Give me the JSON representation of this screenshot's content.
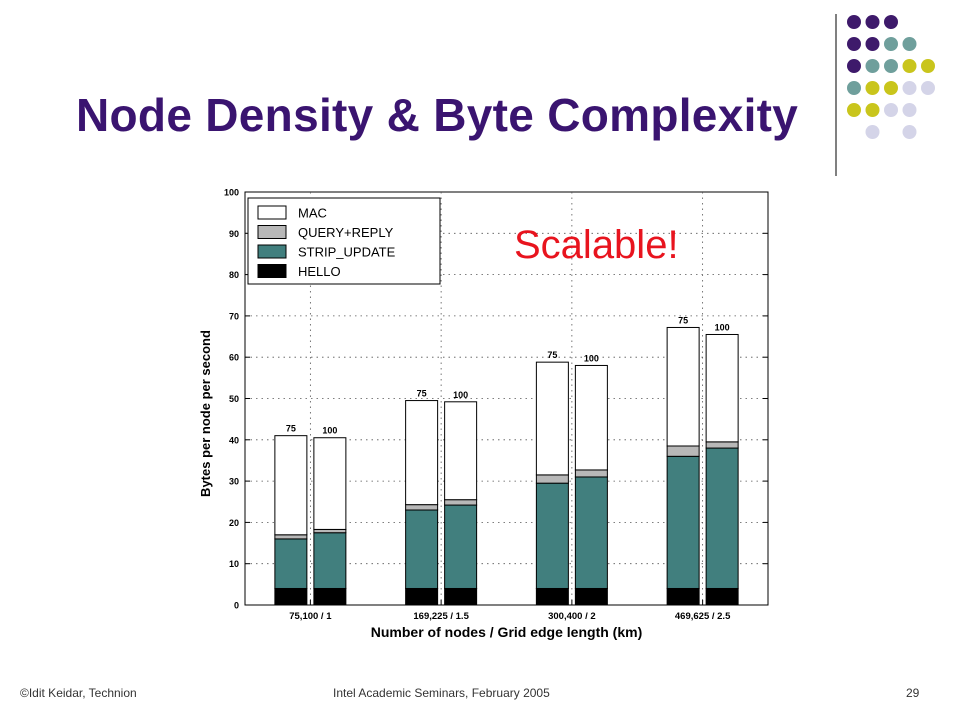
{
  "slide": {
    "title": "Node Density & Byte Complexity",
    "footer_left": "©Idit Keidar, Technion",
    "footer_center": "Intel Academic Seminars, February 2005",
    "page_number": "29",
    "annotation": "Scalable!",
    "colors": {
      "title": "#3a1470",
      "annotation": "#e8141e",
      "dot_purple": "#3e1a6b",
      "dot_teal": "#6f9f9c",
      "dot_yellow": "#c9c51c",
      "dot_lavender": "#d4d4e8"
    }
  },
  "chart_data": {
    "type": "bar",
    "stacked": true,
    "xlabel": "Number of nodes / Grid edge length (km)",
    "ylabel": "Bytes per node per second",
    "ylim": [
      0,
      100
    ],
    "yticks": [
      0,
      10,
      20,
      30,
      40,
      50,
      60,
      70,
      80,
      90,
      100
    ],
    "grid": true,
    "legend_position": "top-left",
    "groups": [
      "75,100 / 1",
      "169,225 / 1.5",
      "300,400 / 2",
      "469,625 / 2.5"
    ],
    "series": [
      {
        "name": "MAC",
        "color": "#ffffff"
      },
      {
        "name": "QUERY+REPLY",
        "color": "#b8b8b8"
      },
      {
        "name": "STRIP_UPDATE",
        "color": "#417f7e"
      },
      {
        "name": "HELLO",
        "color": "#000000"
      }
    ],
    "bars": [
      {
        "group": 0,
        "label": "75",
        "HELLO": 4,
        "STRIP_UPDATE": 12,
        "QUERY+REPLY": 1,
        "MAC": 24
      },
      {
        "group": 0,
        "label": "100",
        "HELLO": 4,
        "STRIP_UPDATE": 13.5,
        "QUERY+REPLY": 0.8,
        "MAC": 22.2
      },
      {
        "group": 1,
        "label": "75",
        "HELLO": 4,
        "STRIP_UPDATE": 19,
        "QUERY+REPLY": 1.3,
        "MAC": 25.2
      },
      {
        "group": 1,
        "label": "100",
        "HELLO": 4,
        "STRIP_UPDATE": 20.2,
        "QUERY+REPLY": 1.3,
        "MAC": 23.7
      },
      {
        "group": 2,
        "label": "75",
        "HELLO": 4,
        "STRIP_UPDATE": 25.5,
        "QUERY+REPLY": 2,
        "MAC": 27.3
      },
      {
        "group": 2,
        "label": "100",
        "HELLO": 4,
        "STRIP_UPDATE": 27,
        "QUERY+REPLY": 1.7,
        "MAC": 25.3
      },
      {
        "group": 3,
        "label": "75",
        "HELLO": 4,
        "STRIP_UPDATE": 32,
        "QUERY+REPLY": 2.5,
        "MAC": 28.7
      },
      {
        "group": 3,
        "label": "100",
        "HELLO": 4,
        "STRIP_UPDATE": 34,
        "QUERY+REPLY": 1.5,
        "MAC": 26
      }
    ]
  }
}
